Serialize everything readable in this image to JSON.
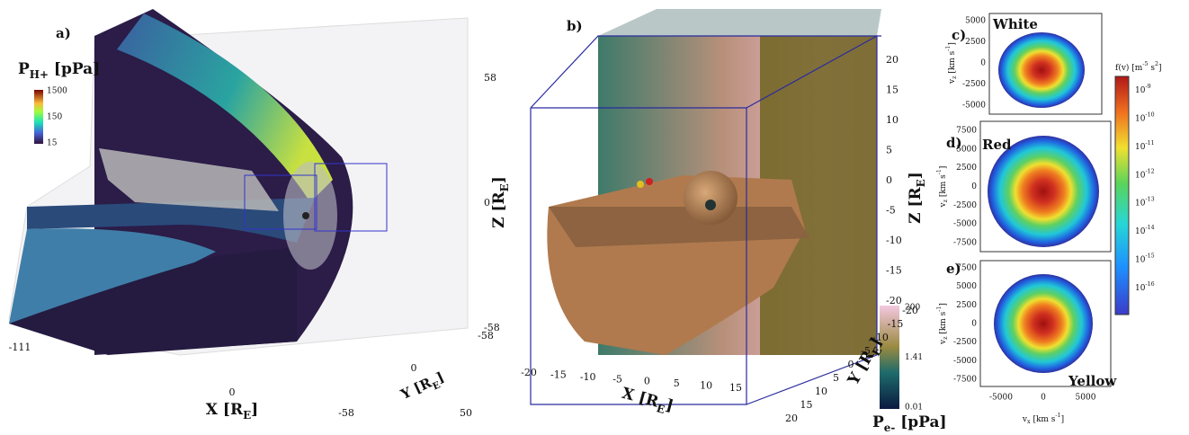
{
  "panel_a": {
    "label": "a)",
    "colorbar": {
      "title": {
        "text": "P",
        "sub": "H+",
        "end": " [pPa]"
      },
      "ticks": [
        "1500",
        "150",
        "15"
      ]
    },
    "z_axis": {
      "label": {
        "text": "Z [R",
        "sub": "E",
        "end": "]"
      },
      "ticks": [
        "58",
        "0",
        "-58"
      ]
    },
    "x_axis": {
      "label": {
        "text": "X [R",
        "sub": "E",
        "end": "]"
      },
      "ticks": [
        "-111",
        "0",
        "50"
      ]
    },
    "y_axis": {
      "label": {
        "text": "Y [R",
        "sub": "E",
        "end": "]"
      },
      "ticks": [
        "-58",
        "0",
        "-58"
      ]
    }
  },
  "panel_b": {
    "label": "b)",
    "z_axis": {
      "label": {
        "text": "Z [R",
        "sub": "E",
        "end": "]"
      },
      "ticks": [
        "20",
        "15",
        "10",
        "5",
        "0",
        "-5",
        "-10",
        "-15",
        "-20"
      ]
    },
    "x_axis": {
      "label": {
        "text": "X [R",
        "sub": "E",
        "end": "]"
      },
      "ticks": [
        "-20",
        "-15",
        "-10",
        "-5",
        "0",
        "5",
        "10",
        "15"
      ]
    },
    "y_axis": {
      "label": {
        "text": "Y [R",
        "sub": "E",
        "end": "]"
      },
      "ticks": [
        "-20",
        "-15",
        "-10",
        "-5",
        "0",
        "5",
        "10",
        "15",
        "20"
      ]
    },
    "colorbar": {
      "title": {
        "text": "P",
        "sub": "e-",
        "end": " [pPa]"
      },
      "ticks": [
        "200",
        "1.41",
        "0.01"
      ]
    }
  },
  "panel_c": {
    "label": "c)",
    "name": "White",
    "y_ticks": [
      "5000",
      "2500",
      "0",
      "-2500",
      "-5000"
    ],
    "y_label": {
      "text": "v",
      "sub": "z",
      "end": " [km s",
      "sup": "-1",
      "close": "]"
    }
  },
  "panel_d": {
    "label": "d)",
    "name": "Red",
    "y_ticks": [
      "7500",
      "5000",
      "2500",
      "0",
      "-2500",
      "-5000",
      "-7500"
    ],
    "y_label": {
      "text": "v",
      "sub": "z",
      "end": " [km s",
      "sup": "-1",
      "close": "]"
    }
  },
  "panel_e": {
    "label": "e)",
    "name": "Yellow",
    "y_ticks": [
      "7500",
      "5000",
      "2500",
      "0",
      "-2500",
      "-5000",
      "-7500"
    ],
    "y_label": {
      "text": "v",
      "sub": "z",
      "end": " [km s",
      "sup": "-1",
      "close": "]"
    },
    "x_ticks": [
      "-5000",
      "0",
      "5000"
    ],
    "x_label": {
      "text": "v",
      "sub": "x",
      "end": " [km s",
      "sup": "-1",
      "close": "]"
    }
  },
  "colorbar_f": {
    "title": {
      "text": "f(v) [m",
      "sup": "-5",
      "end": " s",
      "sup2": "2",
      "close": "]"
    },
    "ticks": [
      {
        "base": "10",
        "exp": "-9"
      },
      {
        "base": "10",
        "exp": "-10"
      },
      {
        "base": "10",
        "exp": "-11"
      },
      {
        "base": "10",
        "exp": "-12"
      },
      {
        "base": "10",
        "exp": "-13"
      },
      {
        "base": "10",
        "exp": "-14"
      },
      {
        "base": "10",
        "exp": "-15"
      },
      {
        "base": "10",
        "exp": "-16"
      }
    ]
  }
}
